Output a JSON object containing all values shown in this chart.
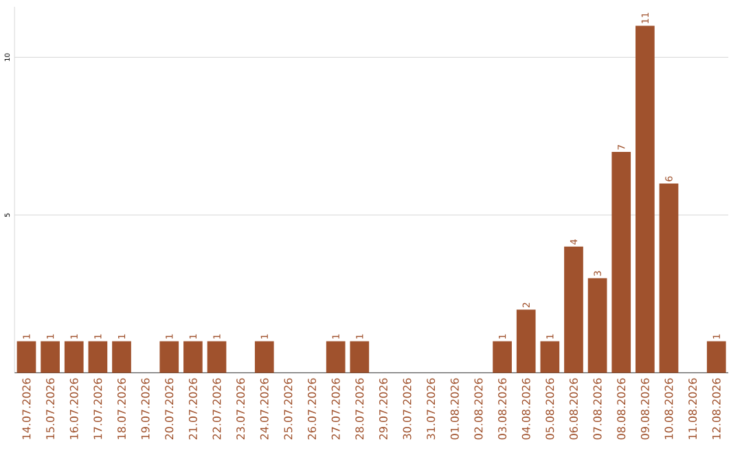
{
  "chart_data": {
    "type": "bar",
    "categories": [
      "14.07.2026",
      "15.07.2026",
      "16.07.2026",
      "17.07.2026",
      "18.07.2026",
      "19.07.2026",
      "20.07.2026",
      "21.07.2026",
      "22.07.2026",
      "23.07.2026",
      "24.07.2026",
      "25.07.2026",
      "26.07.2026",
      "27.07.2026",
      "28.07.2026",
      "29.07.2026",
      "30.07.2026",
      "31.07.2026",
      "01.08.2026",
      "02.08.2026",
      "03.08.2026",
      "04.08.2026",
      "05.08.2026",
      "06.08.2026",
      "07.08.2026",
      "08.08.2026",
      "09.08.2026",
      "10.08.2026",
      "11.08.2026",
      "12.08.2026"
    ],
    "values": [
      1,
      1,
      1,
      1,
      1,
      null,
      1,
      1,
      1,
      null,
      1,
      null,
      null,
      1,
      1,
      null,
      null,
      null,
      null,
      null,
      1,
      2,
      1,
      4,
      3,
      7,
      11,
      6,
      null,
      1
    ],
    "color": "#a0522d",
    "ylim": [
      0,
      11.6
    ],
    "yticks": [
      5,
      10
    ],
    "grid": "y",
    "data_labels": true
  }
}
